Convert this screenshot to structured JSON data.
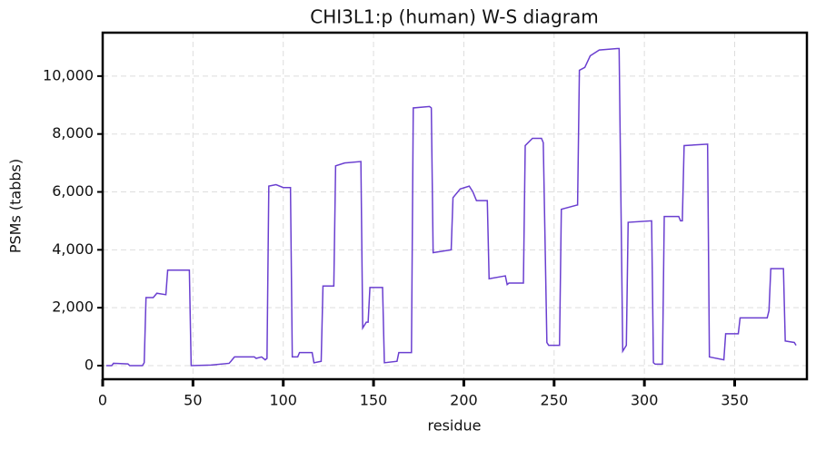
{
  "chart_data": {
    "type": "line",
    "title": "CHI3L1:p (human) W-S diagram",
    "xlabel": "residue",
    "ylabel": "PSMs (tabbs)",
    "x": [
      2,
      5,
      6,
      14,
      15,
      22,
      23,
      24,
      28,
      30,
      35,
      36,
      48,
      49,
      60,
      70,
      71,
      73,
      84,
      85,
      88,
      90,
      91,
      92,
      96,
      100,
      104,
      105,
      108,
      109,
      116,
      117,
      121,
      122,
      128,
      129,
      134,
      143,
      144,
      146,
      147,
      148,
      155,
      156,
      163,
      164,
      171,
      172,
      181,
      182,
      183,
      193,
      194,
      198,
      203,
      205,
      207,
      213,
      214,
      223,
      224,
      225,
      233,
      234,
      238,
      243,
      244,
      246,
      247,
      253,
      254,
      263,
      264,
      267,
      270,
      275,
      285,
      286,
      288,
      290,
      291,
      304,
      305,
      306,
      310,
      311,
      319,
      320,
      321,
      322,
      335,
      336,
      344,
      345,
      352,
      353,
      368,
      369,
      370,
      377,
      378,
      383,
      384
    ],
    "series": [
      {
        "name": "PSMs",
        "color": "#6a3fd0",
        "values": [
          0,
          0,
          80,
          60,
          0,
          0,
          100,
          2350,
          2350,
          2500,
          2450,
          3300,
          3300,
          0,
          20,
          80,
          150,
          300,
          300,
          250,
          300,
          200,
          250,
          6200,
          6250,
          6150,
          6150,
          300,
          300,
          450,
          450,
          100,
          150,
          2750,
          2750,
          6900,
          7000,
          7050,
          1300,
          1500,
          1500,
          2700,
          2700,
          100,
          150,
          450,
          450,
          8900,
          8950,
          8900,
          3900,
          4000,
          5800,
          6100,
          6200,
          6000,
          5700,
          5700,
          3000,
          3100,
          2800,
          2850,
          2850,
          7600,
          7850,
          7850,
          7700,
          800,
          700,
          700,
          5400,
          5550,
          10200,
          10300,
          10700,
          10900,
          10950,
          10950,
          500,
          700,
          4950,
          5000,
          100,
          50,
          50,
          5150,
          5150,
          5000,
          5000,
          7600,
          7650,
          300,
          200,
          1100,
          1100,
          1650,
          1650,
          1900,
          3350,
          3350,
          850,
          800,
          700
        ]
      }
    ],
    "xlim": [
      0,
      390
    ],
    "xticks": [
      0,
      50,
      100,
      150,
      200,
      250,
      300,
      350
    ],
    "ylim": [
      -470,
      11500
    ],
    "yticks": [
      0,
      {
        "value": 2000,
        "label": "2,000"
      },
      {
        "value": 4000,
        "label": "4,000"
      },
      {
        "value": 6000,
        "label": "6,000"
      },
      {
        "value": 8000,
        "label": "8,000"
      },
      {
        "value": 10000,
        "label": "10,000"
      }
    ],
    "grid": true
  }
}
